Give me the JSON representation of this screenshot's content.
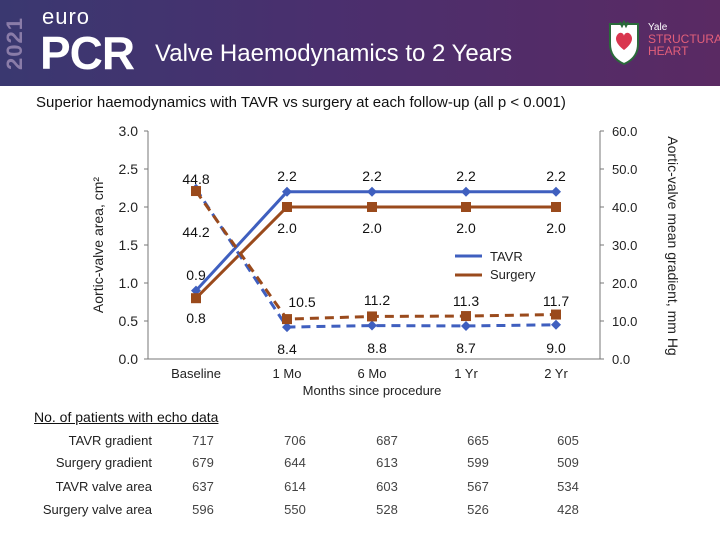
{
  "header": {
    "year": "2021",
    "euro": "euro",
    "pcr": "PCR",
    "title": "Valve Haemodynamics to 2 Years",
    "brand_line1": "Yale",
    "brand_line2": "STRUCTURAL",
    "brand_line3": "HEART"
  },
  "subtitle": "Superior haemodynamics with TAVR vs surgery at each follow-up (all p < 0.001)",
  "colors": {
    "tavr": "#3f5fbf",
    "surgery": "#9a4a1c",
    "banner": "#4a2f6e"
  },
  "chart_data": {
    "type": "line",
    "categories": [
      "Baseline",
      "1 Mo",
      "6 Mo",
      "1 Yr",
      "2 Yr"
    ],
    "xlabel": "Months since procedure",
    "ylabel_left": "Aortic-valve area, cm²",
    "ylabel_right": "Aortic-valve mean gradient, mm Hg",
    "ylim_left": [
      0,
      3.0
    ],
    "yticks_left": [
      "0.0",
      "0.5",
      "1.0",
      "1.5",
      "2.0",
      "2.5",
      "3.0"
    ],
    "ylim_right": [
      0,
      60
    ],
    "yticks_right": [
      "0.0",
      "10.0",
      "20.0",
      "30.0",
      "40.0",
      "50.0",
      "60.0"
    ],
    "legend": [
      "TAVR",
      "Surgery"
    ],
    "legend_position": "center-right",
    "series": [
      {
        "name": "TAVR",
        "measure": "valve area",
        "axis": "left",
        "style": "solid",
        "values": [
          0.9,
          2.2,
          2.2,
          2.2,
          2.2
        ],
        "labels": [
          "0.9",
          "2.2",
          "2.2",
          "2.2",
          "2.2"
        ]
      },
      {
        "name": "Surgery",
        "measure": "valve area",
        "axis": "left",
        "style": "solid",
        "values": [
          0.8,
          2.0,
          2.0,
          2.0,
          2.0
        ],
        "labels": [
          "0.8",
          "2.0",
          "2.0",
          "2.0",
          "2.0"
        ]
      },
      {
        "name": "TAVR",
        "measure": "gradient",
        "axis": "right",
        "style": "dashed",
        "values": [
          44.8,
          8.4,
          8.8,
          8.7,
          9.0
        ],
        "labels": [
          "44.8",
          "8.4",
          "8.8",
          "8.7",
          "9.0"
        ]
      },
      {
        "name": "Surgery",
        "measure": "gradient",
        "axis": "right",
        "style": "dashed",
        "values": [
          44.2,
          10.5,
          11.2,
          11.3,
          11.7
        ],
        "labels": [
          "44.2",
          "10.5",
          "11.2",
          "11.3",
          "11.7"
        ]
      }
    ]
  },
  "table": {
    "heading": "No. of patients with echo data",
    "rows": [
      {
        "label": "TAVR gradient",
        "values": [
          "717",
          "706",
          "687",
          "665",
          "605"
        ]
      },
      {
        "label": "Surgery gradient",
        "values": [
          "679",
          "644",
          "613",
          "599",
          "509"
        ]
      },
      {
        "label": "TAVR valve area",
        "values": [
          "637",
          "614",
          "603",
          "567",
          "534"
        ]
      },
      {
        "label": "Surgery valve area",
        "values": [
          "596",
          "550",
          "528",
          "526",
          "428"
        ]
      }
    ]
  }
}
